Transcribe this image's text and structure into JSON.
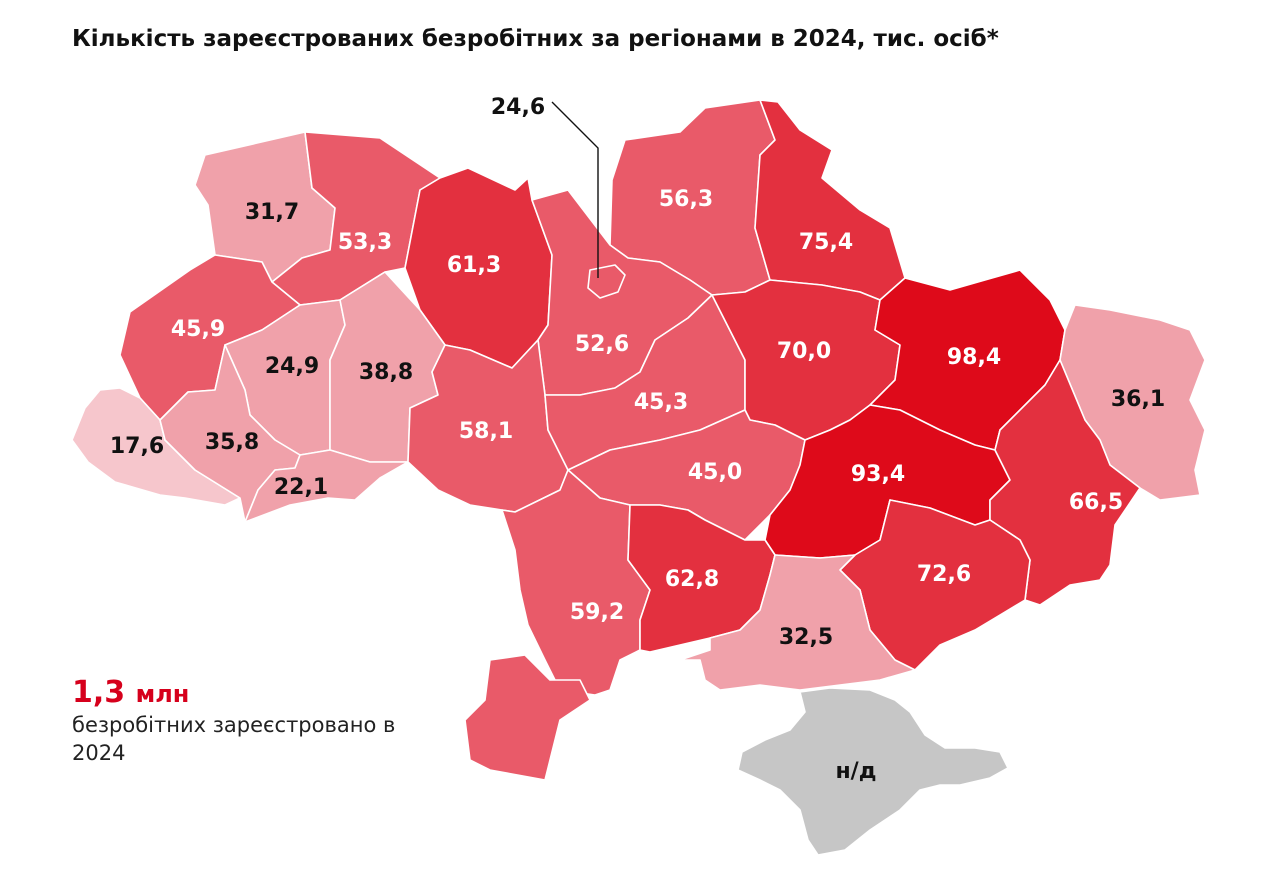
{
  "title": "Кількість зареєстрованих безробітних за регіонами в 2024, тис. осіб*",
  "summary": {
    "total_value": "1,3",
    "total_unit": "млн",
    "description": "безробітних зареєстровано в 2024"
  },
  "colors": {
    "lightest": "#f6c6cc",
    "light": "#f0a1aa",
    "medium": "#e95a69",
    "strong": "#e3303f",
    "darkest": "#de0a1a",
    "no_data": "#c6c6c6"
  },
  "map_data": {
    "unit": "тис. осіб",
    "regions": [
      {
        "id": "volyn",
        "label": "31,7",
        "value": 31.7
      },
      {
        "id": "rivne",
        "label": "53,3",
        "value": 53.3
      },
      {
        "id": "zhytomyr",
        "label": "61,3",
        "value": 61.3
      },
      {
        "id": "kyiv-city",
        "label": "24,6",
        "value": 24.6
      },
      {
        "id": "chernihiv",
        "label": "56,3",
        "value": 56.3
      },
      {
        "id": "sumy",
        "label": "75,4",
        "value": 75.4
      },
      {
        "id": "lviv",
        "label": "45,9",
        "value": 45.9
      },
      {
        "id": "ternopil",
        "label": "24,9",
        "value": 24.9
      },
      {
        "id": "khmelnytskyi",
        "label": "38,8",
        "value": 38.8
      },
      {
        "id": "kyiv-oblast",
        "label": "52,6",
        "value": 52.6
      },
      {
        "id": "poltava",
        "label": "70,0",
        "value": 70.0
      },
      {
        "id": "kharkiv",
        "label": "98,4",
        "value": 98.4
      },
      {
        "id": "luhansk",
        "label": "36,1",
        "value": 36.1
      },
      {
        "id": "zakarpattia",
        "label": "17,6",
        "value": 17.6
      },
      {
        "id": "ivano-frankivsk",
        "label": "35,8",
        "value": 35.8
      },
      {
        "id": "chernivtsi",
        "label": "22,1",
        "value": 22.1
      },
      {
        "id": "vinnytsia",
        "label": "58,1",
        "value": 58.1
      },
      {
        "id": "cherkasy",
        "label": "45,3",
        "value": 45.3
      },
      {
        "id": "kirovohrad",
        "label": "45,0",
        "value": 45.0
      },
      {
        "id": "dnipropetrovsk",
        "label": "93,4",
        "value": 93.4
      },
      {
        "id": "donetsk",
        "label": "66,5",
        "value": 66.5
      },
      {
        "id": "odesa",
        "label": "59,2",
        "value": 59.2
      },
      {
        "id": "mykolaiv",
        "label": "62,8",
        "value": 62.8
      },
      {
        "id": "zaporizhzhia",
        "label": "72,6",
        "value": 72.6
      },
      {
        "id": "kherson",
        "label": "32,5",
        "value": 32.5
      },
      {
        "id": "crimea",
        "label": "н/д",
        "value": null
      }
    ]
  }
}
